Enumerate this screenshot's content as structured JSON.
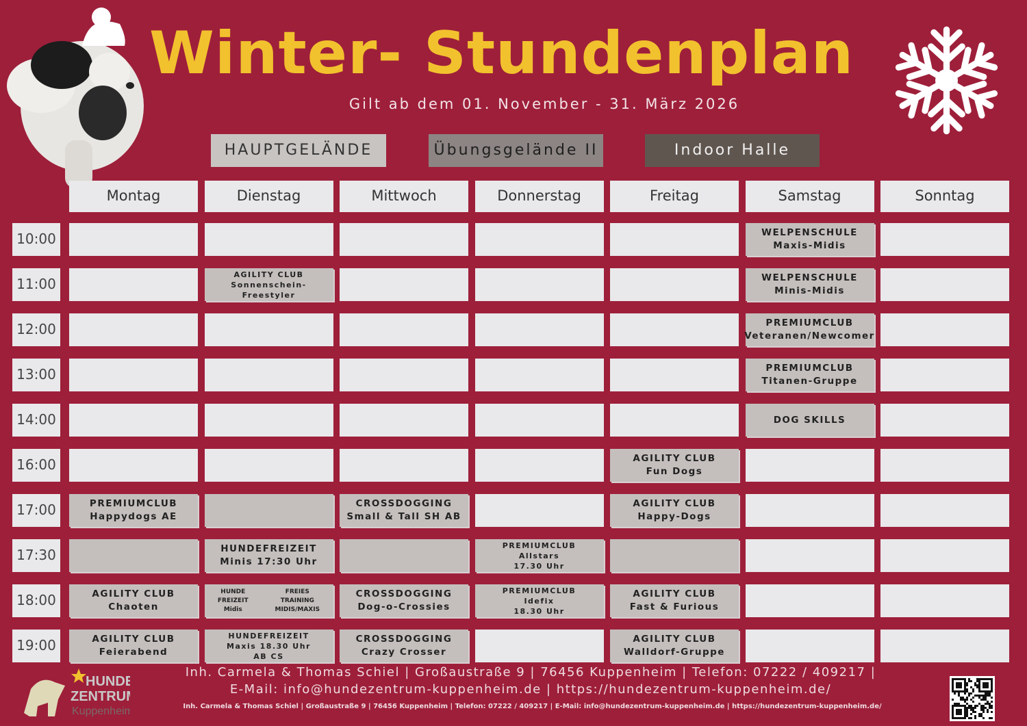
{
  "header": {
    "title": "Winter- Stundenplan",
    "subtitle": "Gilt ab dem 01. November - 31. März 2026"
  },
  "legend": [
    {
      "label": "HAUPTGELÄNDE",
      "color": "#c8c4c2",
      "text_color": "#333333"
    },
    {
      "label": "Übungsgelände II",
      "color": "#8c8583",
      "text_color": "#1f1f1f"
    },
    {
      "label": "Indoor Halle",
      "color": "#605650",
      "text_color": "#f0f0f0"
    }
  ],
  "days": [
    "Montag",
    "Dienstag",
    "Mittwoch",
    "Donnerstag",
    "Freitag",
    "Samstag",
    "Sonntag"
  ],
  "colors": {
    "background": "#9e1f3a",
    "title": "#f2c12e",
    "cell_empty": "#e9e9eb",
    "cell_filled": "#c4bfbd"
  },
  "rows": [
    {
      "time": "10:00",
      "cells": [
        null,
        null,
        null,
        null,
        null,
        {
          "lines": [
            "WELPENSCHULE",
            "Maxis-Midis"
          ]
        },
        null
      ]
    },
    {
      "time": "11:00",
      "cells": [
        null,
        {
          "lines": [
            "AGILITY CLUB",
            "Sonnenschein-Freestyler"
          ]
        },
        null,
        null,
        null,
        {
          "lines": [
            "WELPENSCHULE",
            "Minis-Midis"
          ]
        },
        null
      ]
    },
    {
      "time": "12:00",
      "cells": [
        null,
        null,
        null,
        null,
        null,
        {
          "lines": [
            "PREMIUMCLUB",
            "Veteranen/Newcomer"
          ]
        },
        null
      ]
    },
    {
      "time": "13:00",
      "cells": [
        null,
        null,
        null,
        null,
        null,
        {
          "lines": [
            "PREMIUMCLUB",
            "Titanen-Gruppe"
          ]
        },
        null
      ]
    },
    {
      "time": "14:00",
      "cells": [
        null,
        null,
        null,
        null,
        null,
        {
          "lines": [
            "DOG SKILLS"
          ]
        },
        null
      ]
    },
    {
      "time": "16:00",
      "cells": [
        null,
        null,
        null,
        null,
        {
          "lines": [
            "AGILITY CLUB",
            "Fun Dogs"
          ]
        },
        null,
        null
      ]
    },
    {
      "time": "17:00",
      "cells": [
        {
          "lines": [
            "PREMIUMCLUB",
            "Happydogs AE"
          ]
        },
        {
          "lines": []
        },
        {
          "lines": [
            "CROSSDOGGING",
            "Small & Tall SH AB"
          ]
        },
        null,
        {
          "lines": [
            "AGILITY CLUB",
            "Happy-Dogs"
          ]
        },
        null,
        null
      ]
    },
    {
      "time": "17:30",
      "cells": [
        {
          "lines": []
        },
        {
          "lines": [
            "HUNDEFREIZEIT",
            "Minis 17:30 Uhr"
          ]
        },
        {
          "lines": []
        },
        {
          "lines": [
            "PREMIUMCLUB",
            "Allstars",
            "17.30 Uhr"
          ]
        },
        {
          "lines": []
        },
        null,
        null
      ]
    },
    {
      "time": "18:00",
      "cells": [
        {
          "lines": [
            "AGILITY CLUB",
            "Chaoten"
          ]
        },
        {
          "split": [
            [
              "HUNDE",
              "FREIZEIT",
              "Midis"
            ],
            [
              "FREIES",
              "TRAINING",
              "MIDIS/MAXIS"
            ]
          ]
        },
        {
          "lines": [
            "CROSSDOGGING",
            "Dog-o-Crossies"
          ]
        },
        {
          "lines": [
            "PREMIUMCLUB",
            "Idefix",
            "18.30 Uhr"
          ]
        },
        {
          "lines": [
            "AGILITY CLUB",
            "Fast & Furious"
          ]
        },
        null,
        null
      ]
    },
    {
      "time": "19:00",
      "cells": [
        {
          "lines": [
            "AGILITY CLUB",
            "Feierabend"
          ]
        },
        {
          "lines": [
            "HUNDEFREIZEIT",
            "Maxis 18.30 Uhr",
            "AB CS"
          ]
        },
        {
          "lines": [
            "CROSSDOGGING",
            "Crazy Crosser"
          ]
        },
        null,
        {
          "lines": [
            "AGILITY CLUB",
            "Walldorf-Gruppe"
          ]
        },
        null,
        null
      ]
    }
  ],
  "footer": {
    "line1": "Inh. Carmela & Thomas Schiel | Großaustraße 9 | 76456 Kuppenheim | Telefon: 07222 / 409217 |",
    "line2": "E-Mail: info@hundezentrum-kuppenheim.de | https://hundezentrum-kuppenheim.de/",
    "line3": "Inh. Carmela & Thomas Schiel | Großaustraße 9 | 76456 Kuppenheim | Telefon: 07222 / 409217 | E-Mail: info@hundezentrum-kuppenheim.de | https://hundezentrum-kuppenheim.de/",
    "logo": "HUNDE ZENTRUM Kuppenheim"
  },
  "icons": {
    "mascot": "dog-with-santa-hat-image",
    "snowflake": "snowflake-icon",
    "qr": "qr-code"
  }
}
